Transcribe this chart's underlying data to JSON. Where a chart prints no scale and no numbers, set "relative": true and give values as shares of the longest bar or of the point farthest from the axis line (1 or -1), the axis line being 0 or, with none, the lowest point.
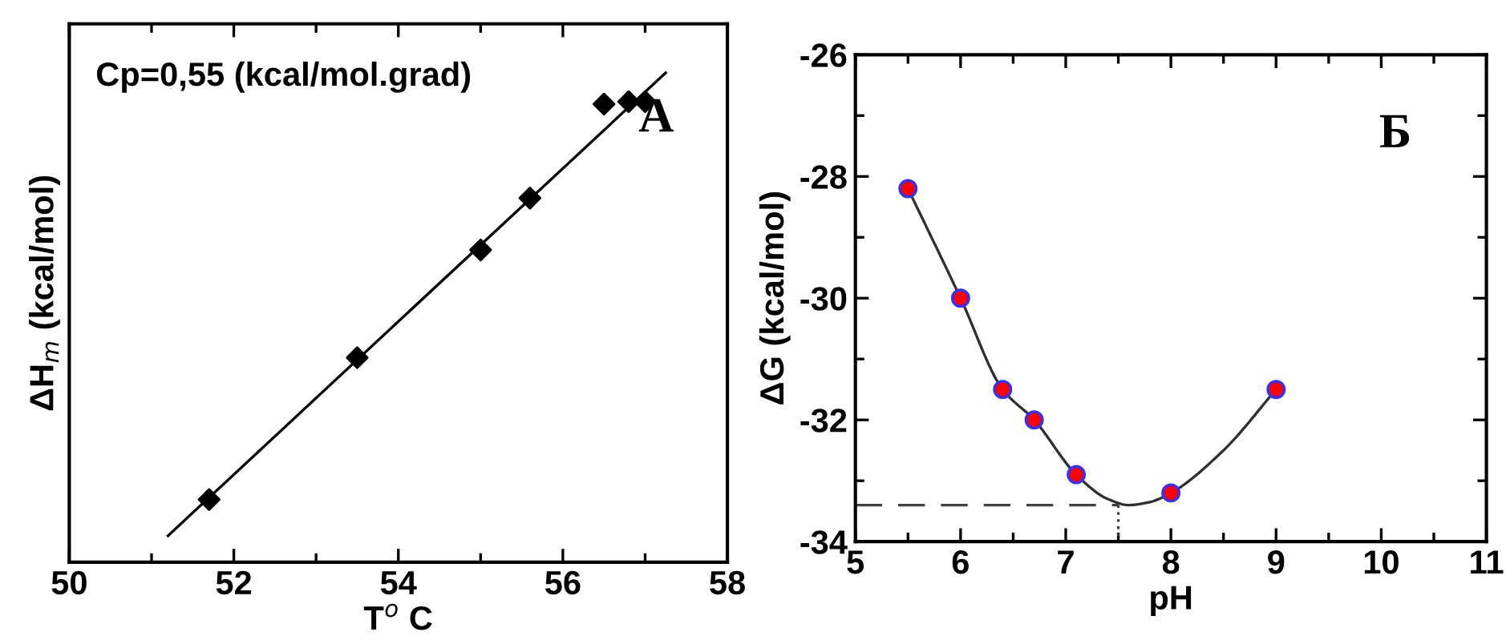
{
  "chart_data": [
    {
      "type": "scatter",
      "relative": true,
      "xlabel": "T$^{o}$ C",
      "ylabel": "ΔH$_{m}$ (kcal/mol)",
      "annotations": [
        "Cp=0,55 (kcal/mol.grad)",
        "А"
      ],
      "xlim": [
        50,
        58
      ],
      "xticks": [
        50,
        52,
        54,
        56,
        58
      ],
      "tick_labels": "x",
      "grid": false,
      "legend": false,
      "series": [
        {
          "marker": "diamond",
          "color": "#000000",
          "x": [
            51.7,
            53.5,
            55.0,
            55.6,
            56.5,
            56.8,
            57.0
          ],
          "values": [
            0.128,
            0.418,
            0.638,
            0.744,
            0.936,
            0.941,
            0.941
          ]
        },
        {
          "type": "line",
          "marker": "none",
          "line_style": "solid",
          "color": "#000000",
          "x": [
            51.2,
            57.25
          ],
          "values": [
            0.054,
            1
          ]
        }
      ]
    },
    {
      "type": "scatter",
      "xlabel": "pH",
      "ylabel": "ΔG (kcal/mol)",
      "annotations": [
        "Б"
      ],
      "xlim": [
        5,
        11
      ],
      "xticks": [
        5,
        6,
        7,
        8,
        9,
        10,
        11
      ],
      "ylim": [
        -34,
        -26
      ],
      "yticks": [
        -34,
        -32,
        -30,
        -28,
        -26
      ],
      "grid": false,
      "legend": false,
      "series": [
        {
          "type": "line",
          "marker": "none",
          "line_style": "dashed",
          "color": "#404040",
          "x": [
            5,
            7.5
          ],
          "values": [
            -33.4,
            -33.4
          ]
        },
        {
          "type": "line",
          "marker": "none",
          "line_style": "dotted",
          "color": "#404040",
          "x": [
            7.5,
            7.5
          ],
          "values": [
            -33.4,
            -34
          ]
        },
        {
          "type": "line",
          "marker": "none",
          "line_style": "solid",
          "color": "#303030",
          "x": [
            5.5,
            6.0,
            6.4,
            6.7,
            7.1,
            7.4,
            7.6,
            7.8,
            8.0,
            8.5,
            9.0
          ],
          "values": [
            -28.2,
            -30.0,
            -31.5,
            -32.0,
            -32.9,
            -33.3,
            -33.4,
            -33.35,
            -33.2,
            -32.5,
            -31.5
          ]
        },
        {
          "marker": "circle",
          "color": "#ff0000",
          "x": [
            5.5,
            6.0,
            6.4,
            6.7,
            7.1,
            8.0,
            9.0
          ],
          "values": [
            -28.2,
            -30.0,
            -31.5,
            -32.0,
            -32.9,
            -33.2,
            -31.5
          ]
        }
      ]
    }
  ]
}
